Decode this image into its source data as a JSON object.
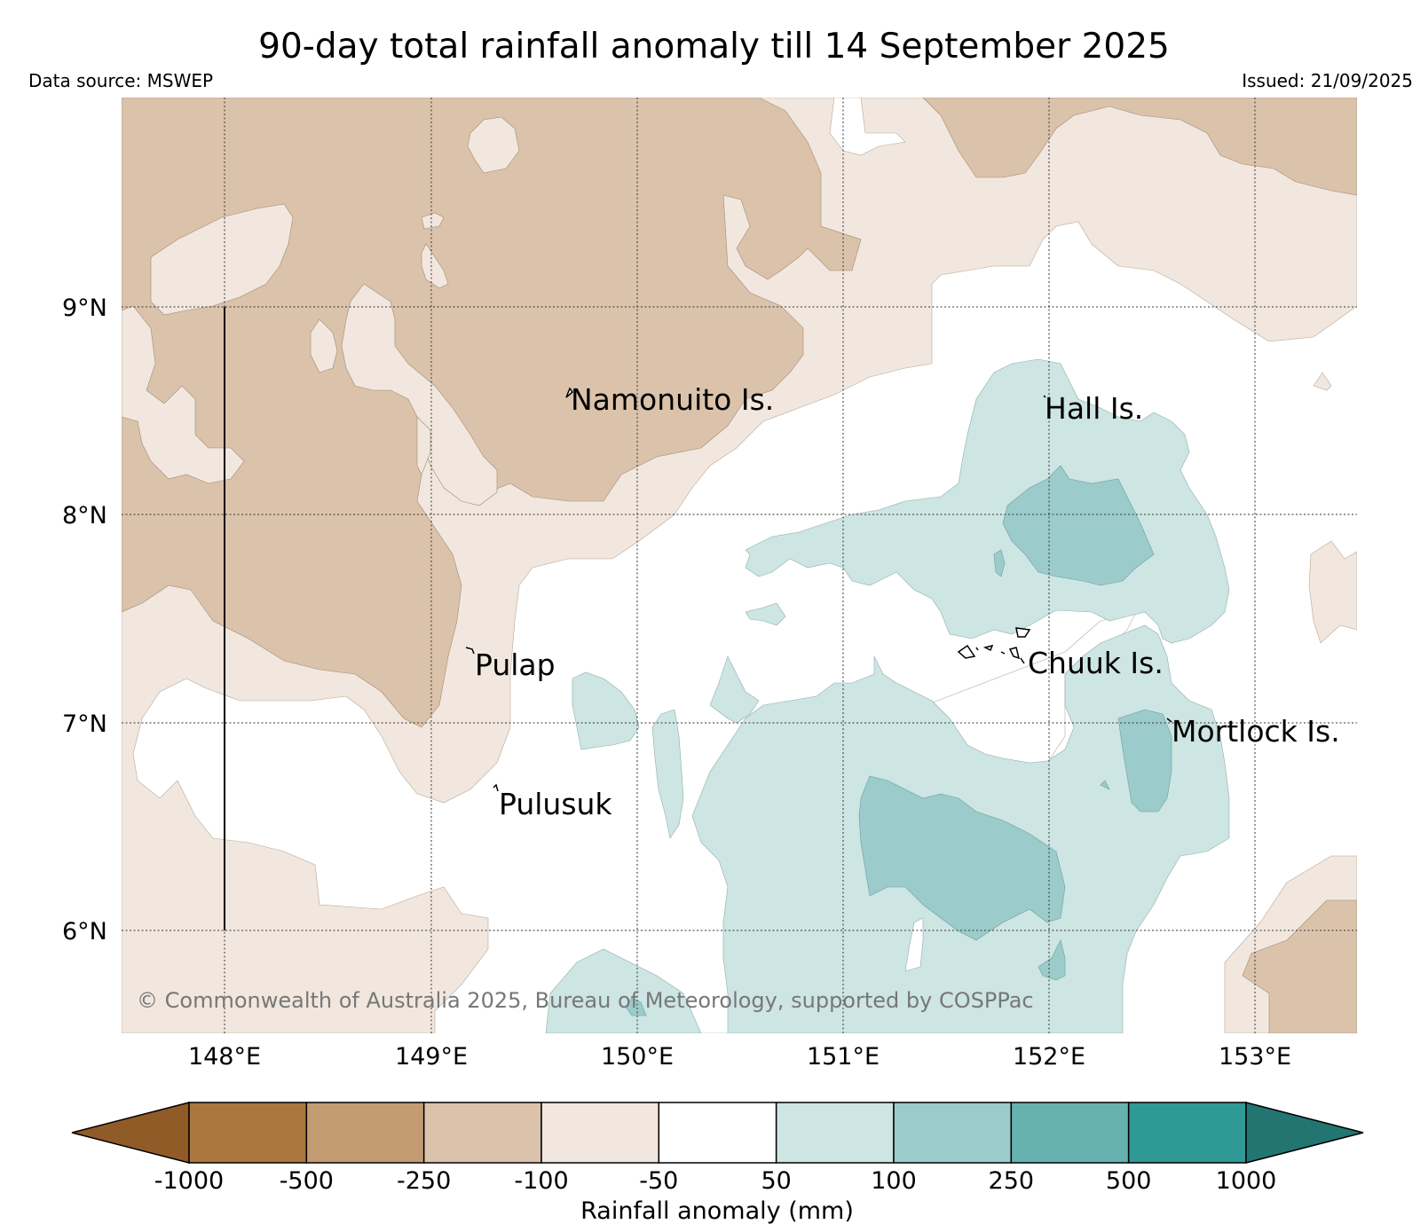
{
  "header": {
    "title": "90-day total rainfall anomaly till 14 September 2025",
    "source": "Data source: MSWEP",
    "issued": "Issued: 21/09/2025"
  },
  "map": {
    "lat_labels": [
      "9°N",
      "8°N",
      "7°N",
      "6°N"
    ],
    "lon_labels": [
      "148°E",
      "149°E",
      "150°E",
      "151°E",
      "152°E",
      "153°E"
    ],
    "islands": [
      {
        "name": "Namonuito Is."
      },
      {
        "name": "Hall Is."
      },
      {
        "name": "Pulap"
      },
      {
        "name": "Chuuk Is."
      },
      {
        "name": "Mortlock Is."
      },
      {
        "name": "Pulusuk"
      }
    ],
    "copyright": "© Commonwealth of Australia 2025, Bureau of Meteorology, supported by COSPPac",
    "colors": {
      "dry_250": "#dbc3ab",
      "dry_100": "#f1e7de",
      "neutral": "#ffffff",
      "wet_50": "#cde5e3",
      "wet_100": "#9bcbcb"
    }
  },
  "colorbar": {
    "title": "Rainfall anomaly (mm)",
    "ticks": [
      "-1000",
      "-500",
      "-250",
      "-100",
      "-50",
      "50",
      "100",
      "250",
      "500",
      "1000"
    ],
    "colors": [
      "#915b28",
      "#ac763f",
      "#c39c74",
      "#dbc3ab",
      "#f1e7de",
      "#ffffff",
      "#cde5e3",
      "#9bcbcb",
      "#66b2b0",
      "#2e9995",
      "#237571"
    ]
  }
}
